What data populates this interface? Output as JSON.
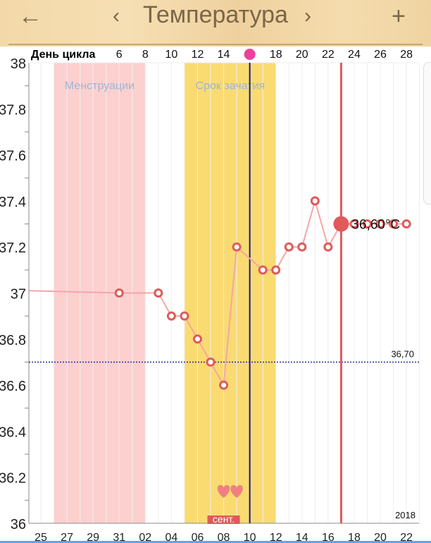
{
  "header": {
    "title": "Температура",
    "back_icon": "arrow-left-icon",
    "prev_icon": "chevron-left-icon",
    "next_icon": "chevron-right-icon",
    "add_icon": "plus-icon"
  },
  "chart_data": {
    "type": "line",
    "cycle_label": "День цикла",
    "cycle_ticks": [
      "6",
      "8",
      "10",
      "12",
      "14",
      "18",
      "20",
      "22",
      "24",
      "26",
      "28"
    ],
    "cycle_tick_days": [
      6,
      8,
      10,
      12,
      14,
      18,
      20,
      22,
      24,
      26,
      28
    ],
    "ovulation_day": 16,
    "date_ticks": [
      "25",
      "27",
      "29",
      "31",
      "02",
      "04",
      "06",
      "08",
      "10",
      "12",
      "14",
      "16",
      "18",
      "20",
      "22"
    ],
    "month_label": "сент.",
    "year_label": "2018",
    "ylim": [
      36,
      38
    ],
    "y_ticks": [
      "38",
      "37.8",
      "37.6",
      "37.4",
      "37.2",
      "37",
      "36.8",
      "36.6",
      "36.4",
      "36.2",
      "36"
    ],
    "bands": [
      {
        "label": "Менструации",
        "from": 1,
        "to": 8,
        "color": "#fdd0d0"
      },
      {
        "label": "Срок зачатия",
        "from": 11,
        "to": 18,
        "color": "#f9db72"
      }
    ],
    "start_value": 37.01,
    "points": [
      [
        6,
        37.0
      ],
      [
        9,
        37.0
      ],
      [
        10,
        36.9
      ],
      [
        11,
        36.9
      ],
      [
        12,
        36.8
      ],
      [
        13,
        36.7
      ],
      [
        14,
        36.6
      ],
      [
        15,
        37.2
      ],
      [
        17,
        37.1
      ],
      [
        18,
        37.1
      ],
      [
        19,
        37.2
      ],
      [
        20,
        37.2
      ],
      [
        21,
        37.4
      ],
      [
        22,
        37.2
      ],
      [
        23,
        37.3
      ],
      [
        24,
        37.3
      ],
      [
        25,
        37.3
      ],
      [
        26,
        37.3
      ],
      [
        27,
        37.3
      ],
      [
        28,
        37.3
      ]
    ],
    "selected_index": 14,
    "selected_label": "36,60°C",
    "today_index": 16,
    "coverline": 36.7,
    "coverline_label": "36,70",
    "hearts": [
      14,
      15
    ],
    "colors": {
      "point": "#e05a5a",
      "line": "#f4a6a6",
      "selected": "#e05a5a",
      "today": "#1a1a8c",
      "coverline": "#2a2aa0"
    }
  }
}
